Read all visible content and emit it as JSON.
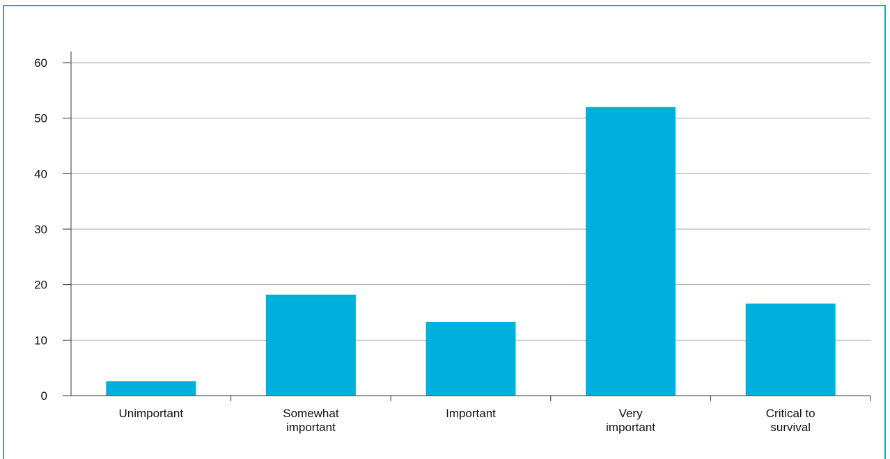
{
  "colors": {
    "frame": "#00b0dc",
    "bar": "#00b0dc",
    "grid": "#a6a6a6",
    "axis": "#333333"
  },
  "chart_data": {
    "type": "bar",
    "categories": [
      "Unimportant",
      "Somewhat important",
      "Important",
      "Very important",
      "Critical to survival"
    ],
    "category_lines": [
      [
        "Unimportant"
      ],
      [
        "Somewhat",
        "important"
      ],
      [
        "Important"
      ],
      [
        "Very",
        "important"
      ],
      [
        "Critical to",
        "survival"
      ]
    ],
    "values": [
      2.6,
      18.2,
      13.3,
      52.0,
      16.6
    ],
    "ylim": [
      0,
      60
    ],
    "yticks": [
      0,
      10,
      20,
      30,
      40,
      50,
      60
    ],
    "grid": true,
    "title": "",
    "xlabel": "",
    "ylabel": ""
  }
}
